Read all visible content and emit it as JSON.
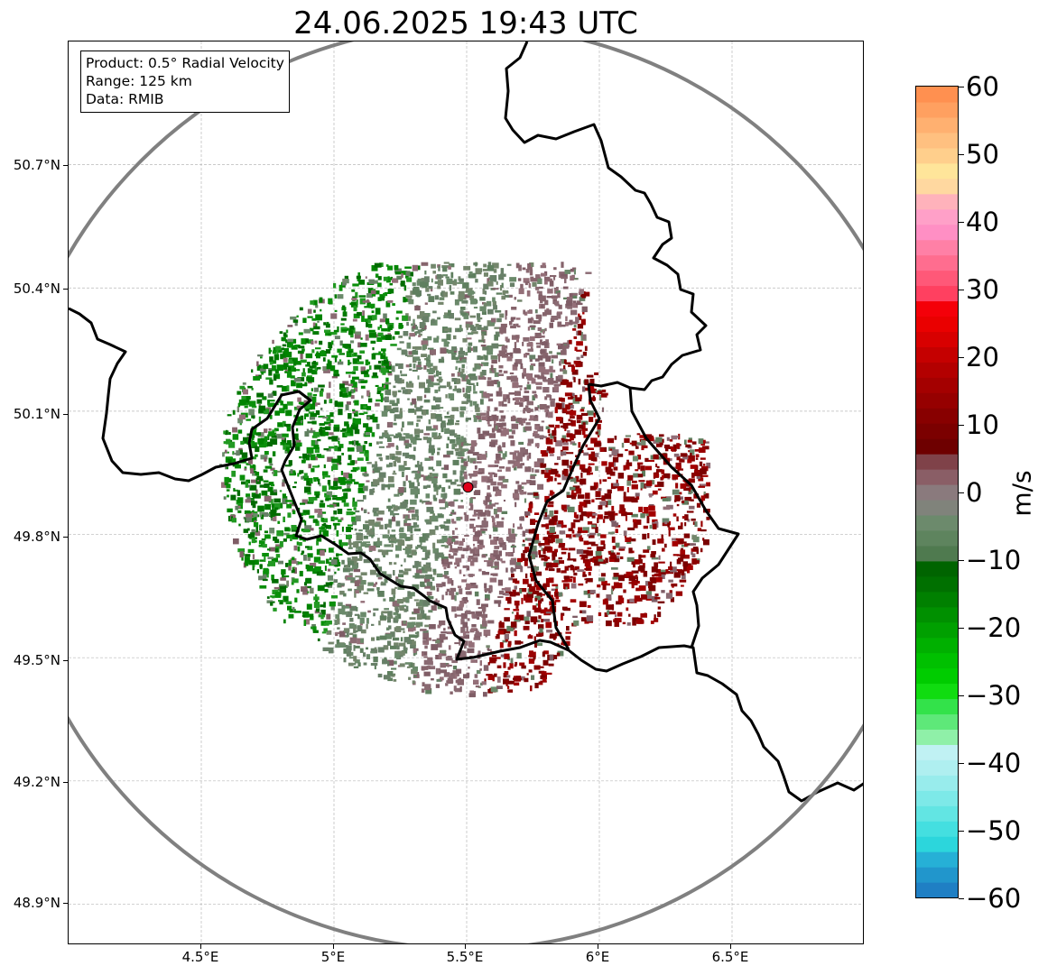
{
  "title": "24.06.2025 19:43 UTC",
  "info": {
    "product": "Product: 0.5° Radial Velocity",
    "range": "Range: 125 km",
    "data": "Data: RMIB"
  },
  "map": {
    "lon_range": [
      4.0,
      7.0
    ],
    "lat_range": [
      48.8,
      51.0
    ],
    "lat_ticks": [
      {
        "value": 50.7,
        "label": "50.7°N"
      },
      {
        "value": 50.4,
        "label": "50.4°N"
      },
      {
        "value": 50.1,
        "label": "50.1°N"
      },
      {
        "value": 49.8,
        "label": "49.8°N"
      },
      {
        "value": 49.5,
        "label": "49.5°N"
      },
      {
        "value": 49.2,
        "label": "49.2°N"
      },
      {
        "value": 48.9,
        "label": "48.9°N"
      }
    ],
    "lon_ticks": [
      {
        "value": 4.5,
        "label": "4.5°E"
      },
      {
        "value": 5.0,
        "label": "5°E"
      },
      {
        "value": 5.5,
        "label": "5.5°E"
      },
      {
        "value": 6.0,
        "label": "6°E"
      },
      {
        "value": 6.5,
        "label": "6.5°E"
      }
    ],
    "radar_site": {
      "lon": 5.505,
      "lat": 49.915,
      "color": "#e0001b"
    },
    "range_ring_km": 125,
    "range_ring_color": "#808080",
    "grid": true
  },
  "colorbar": {
    "min": -60,
    "max": 60,
    "unit": "m/s",
    "ticks": [
      {
        "value": 60,
        "label": "60"
      },
      {
        "value": 50,
        "label": "50"
      },
      {
        "value": 40,
        "label": "40"
      },
      {
        "value": 30,
        "label": "30"
      },
      {
        "value": 20,
        "label": "20"
      },
      {
        "value": 10,
        "label": "10"
      },
      {
        "value": 0,
        "label": "0"
      },
      {
        "value": -10,
        "label": "−10"
      },
      {
        "value": -20,
        "label": "−20"
      },
      {
        "value": -30,
        "label": "−30"
      },
      {
        "value": -40,
        "label": "−40"
      },
      {
        "value": -50,
        "label": "−50"
      },
      {
        "value": -60,
        "label": "−60"
      }
    ],
    "colors": [
      "#1f7fc4",
      "#2196cc",
      "#26b0d6",
      "#2cd6dc",
      "#44dfe0",
      "#62e5e3",
      "#7de9e8",
      "#98ecec",
      "#afeff0",
      "#c0f1f3",
      "#8ff0a8",
      "#5ee879",
      "#33e24a",
      "#10dc10",
      "#00cc00",
      "#00c000",
      "#00b000",
      "#00a000",
      "#009000",
      "#008000",
      "#007000",
      "#006400",
      "#4f7a4f",
      "#5e845e",
      "#6c8a6c",
      "#80837b",
      "#8a7a7d",
      "#8a5e66",
      "#7f4249",
      "#6e0000",
      "#7b0000",
      "#880000",
      "#960000",
      "#a40000",
      "#b30000",
      "#c50000",
      "#d80000",
      "#ea0000",
      "#f40009",
      "#ff4060",
      "#ff5878",
      "#ff6d8f",
      "#ff80a6",
      "#ff8fc4",
      "#ffa0c8",
      "#ffb2bb",
      "#ffd8a0",
      "#ffe59a",
      "#ffcf8c",
      "#ffc080",
      "#ffb070",
      "#ffa060",
      "#ff9050"
    ]
  }
}
